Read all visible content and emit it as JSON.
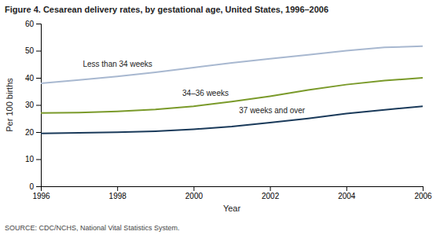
{
  "chart_data": {
    "type": "line",
    "title": "Figure 4. Cesarean delivery rates, by gestational age, United States, 1996–2006",
    "x_label": "Year",
    "y_label": "Per 100 births",
    "source": "SOURCE: CDC/NCHS, National Vital Statistics System.",
    "x": [
      1996,
      1997,
      1998,
      1999,
      2000,
      2001,
      2002,
      2003,
      2004,
      2005,
      2006
    ],
    "series": [
      {
        "name": "Less than 34 weeks",
        "color": "#a8b8d0",
        "values": [
          38.0,
          39.2,
          40.5,
          42.0,
          43.8,
          45.5,
          47.0,
          48.5,
          50.0,
          51.2,
          51.7
        ]
      },
      {
        "name": "34–36 weeks",
        "color": "#7a9a2a",
        "values": [
          27.0,
          27.2,
          27.6,
          28.3,
          29.5,
          31.2,
          33.2,
          35.5,
          37.5,
          39.0,
          40.0
        ]
      },
      {
        "name": "37 weeks and over",
        "color": "#1a3a5a",
        "values": [
          19.5,
          19.7,
          19.9,
          20.3,
          21.0,
          22.0,
          23.5,
          25.0,
          26.8,
          28.2,
          29.5
        ]
      }
    ],
    "xlim": [
      1996,
      2006
    ],
    "xticks": [
      1996,
      1998,
      2000,
      2002,
      2004,
      2006
    ],
    "ylim": [
      0,
      60
    ],
    "yticks": [
      0,
      10,
      20,
      30,
      40,
      50,
      60
    ],
    "grid": false
  }
}
